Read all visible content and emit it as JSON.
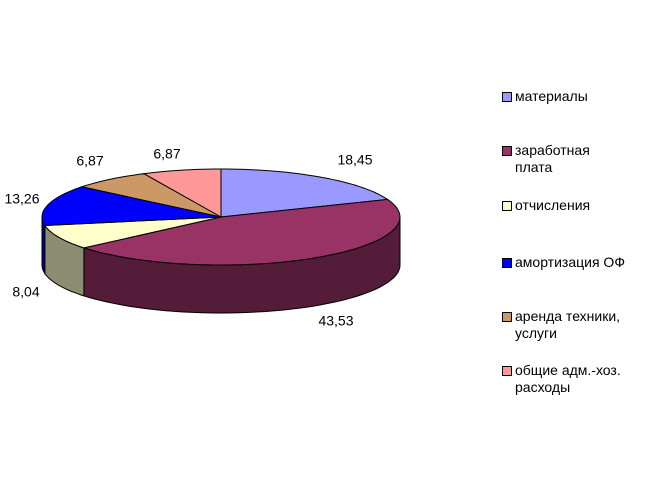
{
  "chart_data": {
    "type": "pie",
    "categories": [
      "материалы",
      "заработная\nплата",
      "отчисления",
      "амортизация ОФ",
      "аренда техники,\nуслуги",
      "общие адм.-хоз.\nрасходы"
    ],
    "values": [
      18.45,
      43.53,
      8.04,
      13.26,
      6.87,
      6.87
    ],
    "value_labels": [
      "18,45",
      "43,53",
      "8,04",
      "13,26",
      "6,87",
      "6,87"
    ],
    "colors": [
      "#9999ff",
      "#993366",
      "#ffffcc",
      "#0000ff",
      "#cc9966",
      "#ff9999"
    ],
    "legend": "right"
  }
}
